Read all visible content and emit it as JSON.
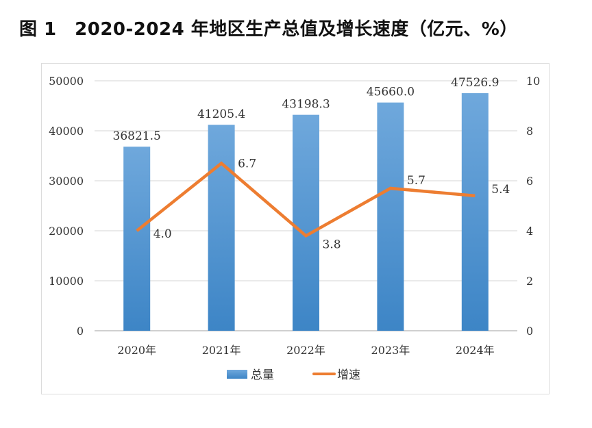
{
  "title": "图 1　2020-2024 年地区生产总值及增长速度（亿元、%）",
  "chart_data": {
    "type": "bar+line",
    "title": "图 1　2020-2024 年地区生产总值及增长速度（亿元、%）",
    "categories": [
      "2020年",
      "2021年",
      "2022年",
      "2023年",
      "2024年"
    ],
    "series": [
      {
        "name": "总量",
        "type": "bar",
        "axis": "left",
        "values": [
          36821.5,
          41205.4,
          43198.3,
          45660.0,
          47526.9
        ],
        "labels": [
          "36821.5",
          "41205.4",
          "43198.3",
          "45660.0",
          "47526.9"
        ],
        "color": "#5b9bd5"
      },
      {
        "name": "增速",
        "type": "line",
        "axis": "right",
        "values": [
          4.0,
          6.7,
          3.8,
          5.7,
          5.4
        ],
        "labels": [
          "4.0",
          "6.7",
          "3.8",
          "5.7",
          "5.4"
        ],
        "color": "#ed7d31"
      }
    ],
    "y_left": {
      "range": [
        0,
        50000
      ],
      "ticks": [
        "0",
        "10000",
        "20000",
        "30000",
        "40000",
        "50000"
      ]
    },
    "y_right": {
      "range": [
        0,
        10
      ],
      "ticks": [
        "0",
        "2",
        "4",
        "6",
        "8",
        "10"
      ]
    },
    "grid": true,
    "legend": "bottom"
  }
}
